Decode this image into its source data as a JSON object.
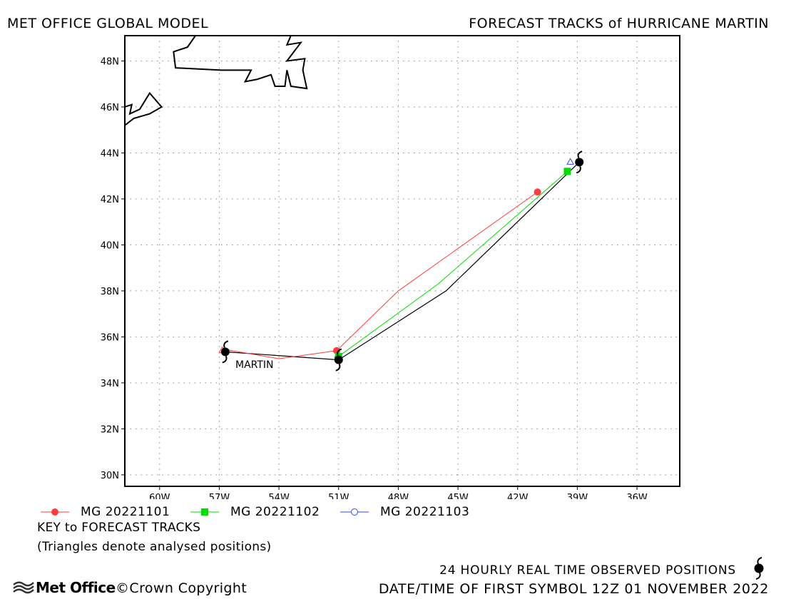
{
  "header": {
    "left": "MET OFFICE GLOBAL MODEL",
    "right": "FORECAST TRACKS of HURRICANE MARTIN"
  },
  "storm_label": "MARTIN",
  "chart_data": {
    "type": "map",
    "lon_ticks": [
      "60W",
      "57W",
      "54W",
      "51W",
      "48W",
      "45W",
      "42W",
      "39W",
      "36W"
    ],
    "lon_tick_values": [
      -60,
      -57,
      -54,
      -51,
      -48,
      -45,
      -42,
      -39,
      -36
    ],
    "lat_ticks": [
      "48N",
      "46N",
      "44N",
      "42N",
      "40N",
      "38N",
      "36N",
      "34N",
      "32N",
      "30N"
    ],
    "lat_tick_values": [
      48,
      46,
      44,
      42,
      40,
      38,
      36,
      34,
      32,
      30
    ],
    "lon_range": [
      -61.75,
      -33.85
    ],
    "lat_range": [
      29.5,
      49.1
    ],
    "grid": true,
    "observed_track": {
      "points": [
        [
          -56.7,
          35.35
        ],
        [
          -51.0,
          35.0
        ],
        [
          -45.6,
          38.0
        ],
        [
          -38.9,
          43.6
        ]
      ]
    },
    "forecast_tracks": [
      {
        "name": "MG 20221101",
        "color": "#ff3b3b",
        "marker": "circle-filled",
        "points": [
          [
            -56.7,
            35.45
          ],
          [
            -54.0,
            35.05
          ],
          [
            -51.1,
            35.4
          ],
          [
            -48.0,
            38.0
          ],
          [
            -41.0,
            42.3
          ]
        ],
        "labeled_points": [
          [
            -51.1,
            35.4
          ],
          [
            -41.0,
            42.3
          ]
        ]
      },
      {
        "name": "MG 20221102",
        "color": "#00dd00",
        "marker": "square-filled",
        "points": [
          [
            -51.0,
            35.15
          ],
          [
            -46.0,
            38.3
          ],
          [
            -39.5,
            43.2
          ]
        ],
        "labeled_points": [
          [
            -51.0,
            35.15
          ],
          [
            -39.5,
            43.2
          ]
        ]
      },
      {
        "name": "MG 20221103",
        "color": "#3344ff",
        "marker": "circle-open",
        "points": [
          [
            -39.25,
            43.55
          ]
        ],
        "labeled_points": []
      }
    ],
    "analysed_triangles": [
      {
        "color": "#ff3b3b",
        "point": [
          -56.85,
          35.4
        ]
      },
      {
        "color": "#00dd00",
        "point": [
          -51.05,
          35.2
        ]
      },
      {
        "color": "#3344ff",
        "point": [
          -39.35,
          43.6
        ]
      }
    ],
    "hurricane_symbols": [
      [
        -56.7,
        35.35
      ],
      [
        -51.0,
        35.0
      ],
      [
        -38.9,
        43.6
      ]
    ],
    "coastlines": [
      [
        [
          -61.75,
          46.0
        ],
        [
          -61.4,
          46.1
        ],
        [
          -61.5,
          45.7
        ],
        [
          -61.0,
          45.9
        ],
        [
          -60.5,
          46.6
        ],
        [
          -59.9,
          46.0
        ],
        [
          -60.5,
          45.7
        ],
        [
          -61.3,
          45.5
        ],
        [
          -61.75,
          45.2
        ]
      ],
      [
        [
          -58.2,
          49.1
        ],
        [
          -58.6,
          48.6
        ],
        [
          -59.3,
          48.4
        ],
        [
          -59.2,
          47.7
        ],
        [
          -56.9,
          47.6
        ],
        [
          -55.4,
          47.6
        ],
        [
          -55.7,
          47.1
        ],
        [
          -55.1,
          47.2
        ],
        [
          -54.4,
          47.4
        ],
        [
          -54.2,
          46.9
        ],
        [
          -53.7,
          46.9
        ],
        [
          -53.6,
          47.6
        ],
        [
          -53.4,
          46.9
        ],
        [
          -52.6,
          46.8
        ],
        [
          -52.8,
          47.6
        ],
        [
          -52.7,
          48.1
        ],
        [
          -53.6,
          48.0
        ],
        [
          -52.9,
          48.8
        ],
        [
          -53.6,
          48.7
        ],
        [
          -53.4,
          49.1
        ]
      ]
    ]
  },
  "legend": {
    "items": [
      {
        "label": "MG 20221101",
        "color": "#ff3b3b",
        "marker": "circle-filled"
      },
      {
        "label": "MG 20221102",
        "color": "#00dd00",
        "marker": "square-filled"
      },
      {
        "label": "MG 20221103",
        "color": "#3344ff",
        "marker": "circle-open"
      }
    ],
    "key_title": "KEY to FORECAST TRACKS",
    "key_note": "(Triangles denote analysed positions)"
  },
  "footer": {
    "observed_text": "24 HOURLY REAL TIME OBSERVED POSITIONS",
    "datetime_text": "DATE/TIME OF FIRST SYMBOL 12Z 01 NOVEMBER 2022",
    "logo_text": "Met Office",
    "copyright_text": "©Crown Copyright"
  }
}
